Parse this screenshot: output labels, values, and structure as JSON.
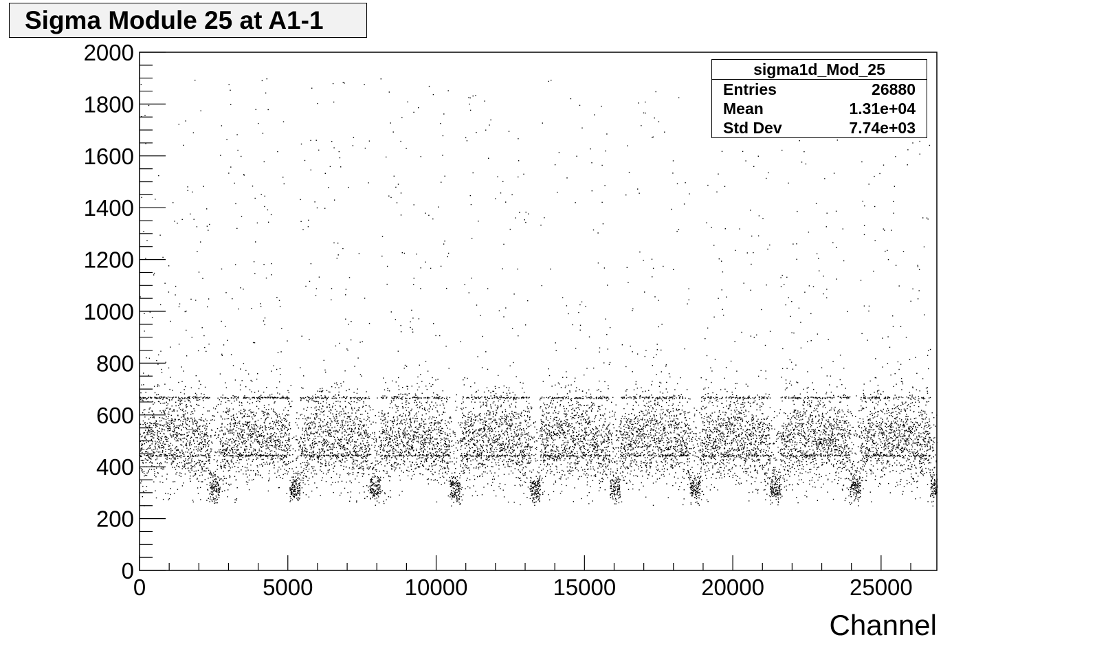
{
  "chart_data": {
    "type": "scatter",
    "title": "Sigma Module 25 at A1-1",
    "xlabel": "Channel",
    "ylabel": "",
    "xlim": [
      0,
      26880
    ],
    "ylim": [
      0,
      2000
    ],
    "xticks": [
      0,
      5000,
      10000,
      15000,
      20000,
      25000
    ],
    "yticks": [
      0,
      200,
      400,
      600,
      800,
      1000,
      1200,
      1400,
      1600,
      1800,
      2000
    ],
    "grid": false,
    "legend": "none",
    "stats": {
      "name": "sigma1d_Mod_25",
      "rows": [
        {
          "label": "Entries",
          "value": "26880"
        },
        {
          "label": "Mean",
          "value": "1.31e+04"
        },
        {
          "label": "Std Dev",
          "value": "7.74e+03"
        }
      ]
    },
    "distribution": {
      "chip_width": 2700,
      "chip_starts": [
        0,
        2700,
        5400,
        8100,
        10800,
        13500,
        16200,
        18900,
        21600,
        24300
      ],
      "low_cluster_sigma_center": 320,
      "main_band_sigma_center": 480,
      "quantized_levels": [
        445,
        668
      ],
      "tail_max": 1900
    },
    "colors": {
      "marker": "#000000",
      "frame": "#000000",
      "title_bg": "#f2f2f2"
    }
  }
}
